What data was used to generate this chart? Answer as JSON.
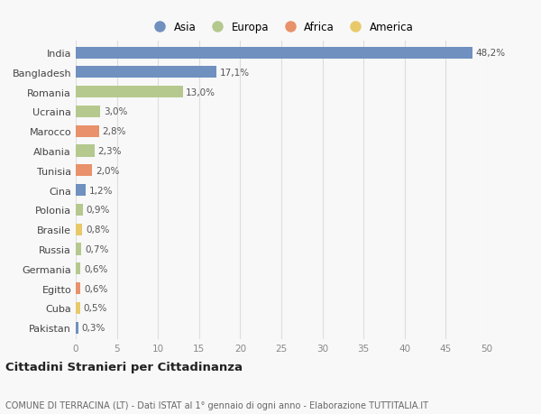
{
  "countries": [
    "India",
    "Bangladesh",
    "Romania",
    "Ucraina",
    "Marocco",
    "Albania",
    "Tunisia",
    "Cina",
    "Polonia",
    "Brasile",
    "Russia",
    "Germania",
    "Egitto",
    "Cuba",
    "Pakistan"
  ],
  "values": [
    48.2,
    17.1,
    13.0,
    3.0,
    2.8,
    2.3,
    2.0,
    1.2,
    0.9,
    0.8,
    0.7,
    0.6,
    0.6,
    0.5,
    0.3
  ],
  "labels": [
    "48,2%",
    "17,1%",
    "13,0%",
    "3,0%",
    "2,8%",
    "2,3%",
    "2,0%",
    "1,2%",
    "0,9%",
    "0,8%",
    "0,7%",
    "0,6%",
    "0,6%",
    "0,5%",
    "0,3%"
  ],
  "continents": [
    "Asia",
    "Asia",
    "Europa",
    "Europa",
    "Africa",
    "Europa",
    "Africa",
    "Asia",
    "Europa",
    "America",
    "Europa",
    "Europa",
    "Africa",
    "America",
    "Asia"
  ],
  "colors": {
    "Asia": "#7090bf",
    "Europa": "#b5c98e",
    "Africa": "#e8916a",
    "America": "#e8c96a"
  },
  "legend_order": [
    "Asia",
    "Europa",
    "Africa",
    "America"
  ],
  "title": "Cittadini Stranieri per Cittadinanza",
  "subtitle": "COMUNE DI TERRACINA (LT) - Dati ISTAT al 1° gennaio di ogni anno - Elaborazione TUTTITALIA.IT",
  "xlim": [
    0,
    50
  ],
  "xticks": [
    0,
    5,
    10,
    15,
    20,
    25,
    30,
    35,
    40,
    45,
    50
  ],
  "background_color": "#f8f8f8",
  "bar_height": 0.6,
  "grid_color": "#dddddd"
}
